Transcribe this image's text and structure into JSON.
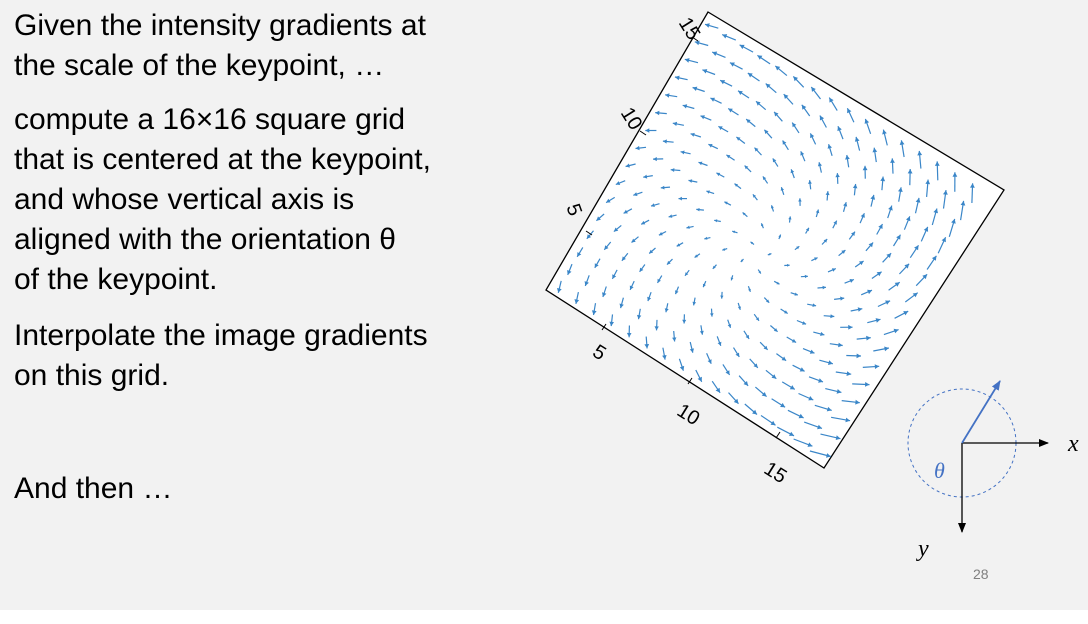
{
  "slide": {
    "paragraphs": [
      {
        "lines": [
          "Given the intensity gradients at",
          "the scale of the keypoint, …"
        ]
      },
      {
        "lines": [
          "compute a 16×16 square grid",
          "that is centered at the keypoint,",
          "and whose vertical axis is",
          "aligned with the orientation θ",
          "of the keypoint."
        ]
      },
      {
        "lines": [
          "Interpolate the image gradients",
          "on this grid."
        ]
      },
      {
        "lines": [
          "And then …"
        ]
      }
    ],
    "page_number": "28"
  },
  "figure": {
    "side_axis_ticks": [
      "5",
      "10",
      "15"
    ],
    "bottom_axis_ticks": [
      "5",
      "10",
      "15"
    ],
    "arrow_color": "#3a86c8",
    "grid_size": 16
  },
  "orientation_diagram": {
    "x_label": "x",
    "y_label": "y",
    "angle_label": "θ",
    "accent": "#4472c4"
  }
}
